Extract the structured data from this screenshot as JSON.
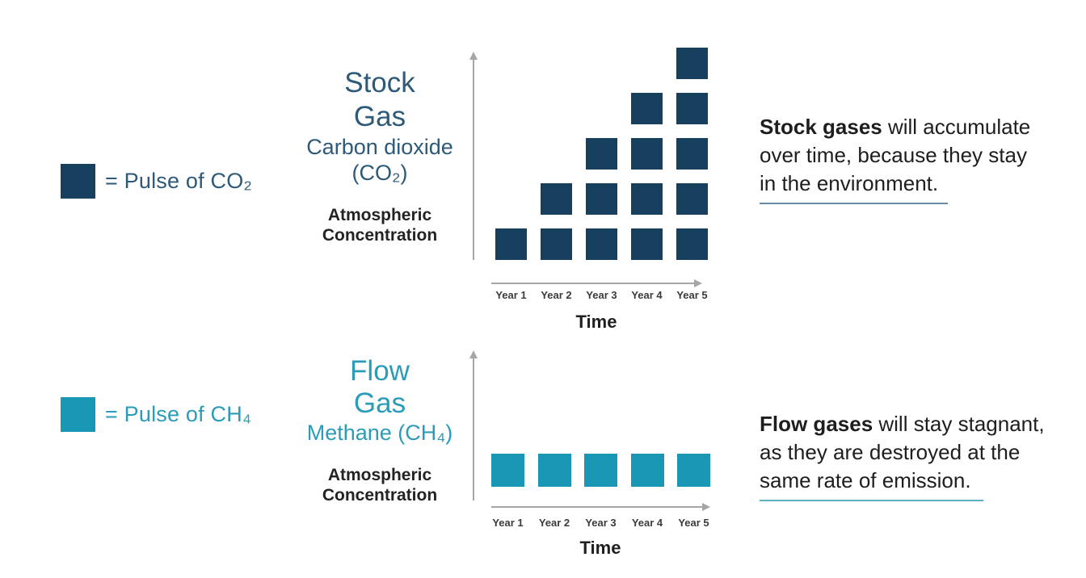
{
  "colors": {
    "navy": "#17405e",
    "teal": "#1a97b5",
    "stock_title_text": "#2d5a78",
    "flow_title_text": "#2a9cb8",
    "axis_gray": "#a6a6a6",
    "body_text": "#1e1e1e",
    "stock_underline": "#6b8aa5",
    "flow_underline": "#5fb0c0"
  },
  "legend_co2": {
    "label": "= Pulse of CO₂"
  },
  "legend_ch4": {
    "label": "= Pulse of CH₄"
  },
  "stock": {
    "title1": "Stock",
    "title2": "Gas",
    "sub1": "Carbon dioxide",
    "sub2": "(CO₂)",
    "ylabel1": "Atmospheric",
    "ylabel2": "Concentration",
    "note_lead": "Stock gases",
    "note_line1_rest": " will accumulate",
    "note_line2": "over time, because they stay",
    "note_line3": "in the environment."
  },
  "flow": {
    "title1": "Flow",
    "title2": "Gas",
    "sub1": "Methane (CH₄)",
    "ylabel1": "Atmospheric",
    "ylabel2": "Concentration",
    "note_lead": "Flow gases",
    "note_line1_rest": " will stay stagnant,",
    "note_line2": "as they are destroyed at the",
    "note_line3": "same rate of emission."
  },
  "chart_data": [
    {
      "id": "stock",
      "type": "bar",
      "title": "Stock Gas — Carbon dioxide (CO₂)",
      "categories": [
        "Year 1",
        "Year 2",
        "Year 3",
        "Year 4",
        "Year 5"
      ],
      "values": [
        1,
        2,
        3,
        4,
        5
      ],
      "xlabel": "Time",
      "ylabel": "Atmospheric Concentration",
      "legend": "Each square = 1 pulse of CO₂",
      "ylim": [
        0,
        5
      ],
      "grid": false,
      "color": "#17405e"
    },
    {
      "id": "flow",
      "type": "bar",
      "title": "Flow Gas — Methane (CH₄)",
      "categories": [
        "Year 1",
        "Year 2",
        "Year 3",
        "Year 4",
        "Year 5"
      ],
      "values": [
        1,
        1,
        1,
        1,
        1
      ],
      "xlabel": "Time",
      "ylabel": "Atmospheric Concentration",
      "legend": "Each square = 1 pulse of CH₄",
      "ylim": [
        0,
        5
      ],
      "grid": false,
      "color": "#1a97b5"
    }
  ]
}
